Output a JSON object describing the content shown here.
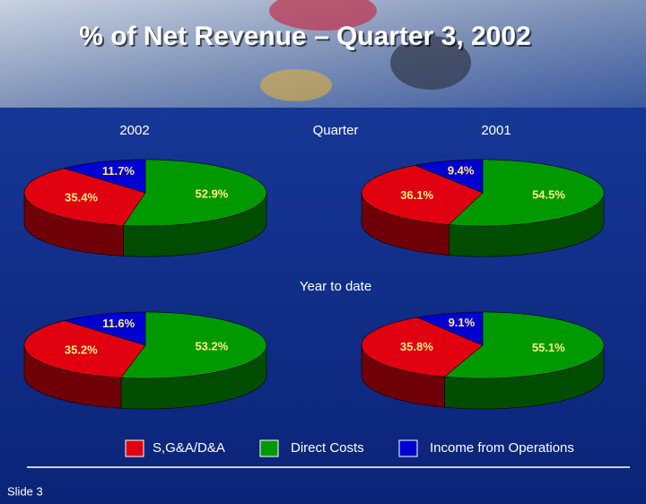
{
  "slide": {
    "title": "% of Net Revenue – Quarter 3, 2002",
    "columns": [
      "2002",
      "2001"
    ],
    "rows": [
      "Quarter",
      "Year to date"
    ],
    "footer": "Slide 3"
  },
  "chart_data": [
    {
      "type": "pie",
      "categories": [
        "S,G&A/D&A",
        "Direct Costs",
        "Income from Operations"
      ],
      "values": [
        35.4,
        52.9,
        11.7
      ],
      "value_labels": [
        "35.4%",
        "52.9%",
        "11.7%"
      ],
      "colors": [
        "#e00010",
        "#009a00",
        "#0000d0"
      ]
    },
    {
      "type": "pie",
      "categories": [
        "S,G&A/D&A",
        "Direct Costs",
        "Income from Operations"
      ],
      "values": [
        36.1,
        54.5,
        9.4
      ],
      "value_labels": [
        "36.1%",
        "54.5%",
        "9.4%"
      ],
      "colors": [
        "#e00010",
        "#009a00",
        "#0000d0"
      ]
    },
    {
      "type": "pie",
      "categories": [
        "S,G&A/D&A",
        "Direct Costs",
        "Income from Operations"
      ],
      "values": [
        35.2,
        53.2,
        11.6
      ],
      "value_labels": [
        "35.2%",
        "53.2%",
        "11.6%"
      ],
      "colors": [
        "#e00010",
        "#009a00",
        "#0000d0"
      ]
    },
    {
      "type": "pie",
      "categories": [
        "S,G&A/D&A",
        "Direct Costs",
        "Income from Operations"
      ],
      "values": [
        35.8,
        55.1,
        9.1
      ],
      "value_labels": [
        "35.8%",
        "55.1%",
        "9.1%"
      ],
      "colors": [
        "#e00010",
        "#009a00",
        "#0000d0"
      ]
    }
  ]
}
